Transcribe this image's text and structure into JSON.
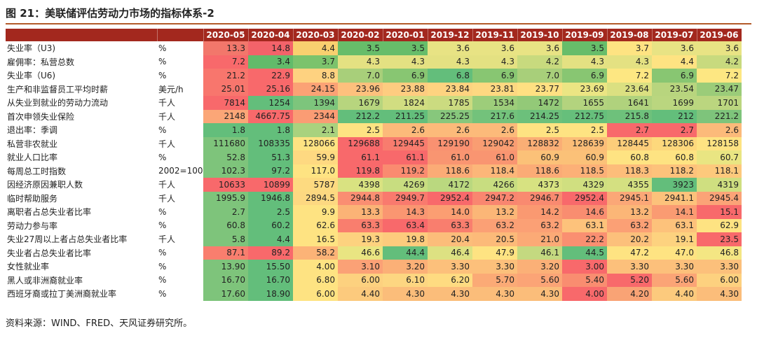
{
  "title": "图 21：美联储评估劳动力市场的指标体系-2",
  "source": "资料来源：WIND、FRED、天风证券研究所。",
  "chart_data": {
    "type": "table",
    "columns": [
      "2020-05",
      "2020-04",
      "2020-03",
      "2020-02",
      "2020-01",
      "2019-12",
      "2019-11",
      "2019-10",
      "2019-09",
      "2019-08",
      "2019-07",
      "2019-06"
    ],
    "rows": [
      {
        "label": "失业率（U3)",
        "unit": "%",
        "values": [
          "13.3",
          "14.8",
          "4.4",
          "3.5",
          "3.5",
          "3.6",
          "3.6",
          "3.6",
          "3.5",
          "3.7",
          "3.6",
          "3.6"
        ],
        "colors": [
          "#f2776b",
          "#f3636a",
          "#f9d06f",
          "#67bd6a",
          "#67bd6a",
          "#e8e384",
          "#e8e384",
          "#e8e384",
          "#67bd6a",
          "#fee382",
          "#e8e384",
          "#e8e384"
        ]
      },
      {
        "label": "雇佣率：私营总数",
        "unit": "%",
        "values": [
          "7.2",
          "3.4",
          "3.7",
          "4.3",
          "4.3",
          "4.3",
          "4.3",
          "4.2",
          "4.3",
          "4.3",
          "4.4",
          "4.2"
        ],
        "colors": [
          "#f8696b",
          "#62bb6a",
          "#7cc36c",
          "#e4e182",
          "#e4e182",
          "#e4e182",
          "#e4e182",
          "#c8da7e",
          "#e4e182",
          "#e4e182",
          "#fee382",
          "#c8da7e"
        ]
      },
      {
        "label": "失业率（U6)",
        "unit": "%",
        "values": [
          "21.2",
          "22.9",
          "8.8",
          "7.0",
          "6.9",
          "6.8",
          "6.9",
          "7.0",
          "6.9",
          "7.2",
          "6.9",
          "7.2"
        ],
        "colors": [
          "#f8766d",
          "#f8696b",
          "#fed280",
          "#a8cf7a",
          "#88c672",
          "#63be7b",
          "#88c672",
          "#a8cf7a",
          "#88c672",
          "#fde782",
          "#88c672",
          "#fde782"
        ]
      },
      {
        "label": "生产和非监督员工平均时薪",
        "unit": "美元/h",
        "values": [
          "25.01",
          "25.16",
          "24.15",
          "23.96",
          "23.88",
          "23.84",
          "23.81",
          "23.77",
          "23.69",
          "23.64",
          "23.54",
          "23.47"
        ],
        "colors": [
          "#f8766d",
          "#f8696b",
          "#fba275",
          "#fdc07d",
          "#fecc80",
          "#fed380",
          "#fed881",
          "#ffe082",
          "#ebe583",
          "#dbe081",
          "#b8d57e",
          "#9bcc79"
        ]
      },
      {
        "label": "从失业到就业的劳动力流动",
        "unit": "千人",
        "values": [
          "7814",
          "1254",
          "1394",
          "1679",
          "1824",
          "1785",
          "1534",
          "1472",
          "1655",
          "1641",
          "1699",
          "1701"
        ],
        "colors": [
          "#f8696b",
          "#63be7b",
          "#7dc57c",
          "#b7d57e",
          "#d1dd81",
          "#cbdb80",
          "#9dcd7a",
          "#93c978",
          "#b3d37e",
          "#b0d27d",
          "#bad67f",
          "#bbd67f"
        ]
      },
      {
        "label": "首次申领失业保险",
        "unit": "千人",
        "values": [
          "2148",
          "4667.75",
          "2344",
          "212.2",
          "211.25",
          "225.25",
          "217.6",
          "214.25",
          "212.75",
          "215.8",
          "212",
          "221.2"
        ],
        "colors": [
          "#fba677",
          "#f8696b",
          "#fa9c74",
          "#63be7b",
          "#63be7b",
          "#87c77c",
          "#73c27b",
          "#6cc07b",
          "#66bf7b",
          "#6ec17b",
          "#63be7b",
          "#7ec47b"
        ]
      },
      {
        "label": "退出率：季调",
        "unit": "%",
        "values": [
          "1.8",
          "1.8",
          "2.1",
          "2.5",
          "2.6",
          "2.6",
          "2.6",
          "2.5",
          "2.5",
          "2.7",
          "2.7",
          "2.6"
        ],
        "colors": [
          "#63be7b",
          "#63be7b",
          "#a9d27e",
          "#fee382",
          "#fcba7a",
          "#fcba7a",
          "#fcba7a",
          "#fee382",
          "#fee382",
          "#f8696b",
          "#f8696b",
          "#fcba7a"
        ]
      },
      {
        "label": "私营非农就业",
        "unit": "千人",
        "values": [
          "111680",
          "108335",
          "128066",
          "129688",
          "129445",
          "129190",
          "129042",
          "128832",
          "128639",
          "128445",
          "128306",
          "128158"
        ],
        "colors": [
          "#7ec47b",
          "#63be7b",
          "#fee382",
          "#f8696b",
          "#f87c6e",
          "#f99171",
          "#f99d72",
          "#faae75",
          "#fbbd77",
          "#fccd7a",
          "#fdd87c",
          "#fee382"
        ]
      },
      {
        "label": "就业人口比率",
        "unit": "%",
        "values": [
          "52.8",
          "51.3",
          "59.9",
          "61.1",
          "61.1",
          "61.0",
          "61.0",
          "60.9",
          "60.9",
          "60.8",
          "60.8",
          "60.7"
        ],
        "colors": [
          "#7ec47b",
          "#63be7b",
          "#fed981",
          "#f8696b",
          "#f8696b",
          "#f99571",
          "#f99571",
          "#fbc178",
          "#fbc178",
          "#fee382",
          "#fee382",
          "#e9e582"
        ]
      },
      {
        "label": "每周总工时指数",
        "unit": "2002=100",
        "values": [
          "102.3",
          "97.2",
          "117.0",
          "119.8",
          "119.2",
          "118.6",
          "118.4",
          "118.6",
          "118.5",
          "118.3",
          "118.2",
          "118.1"
        ],
        "colors": [
          "#7ec47b",
          "#63be7b",
          "#fee382",
          "#f8696b",
          "#fa8b70",
          "#fbab76",
          "#fcb679",
          "#fbab76",
          "#fcb077",
          "#fdbd7a",
          "#fdc27b",
          "#fdc97c"
        ]
      },
      {
        "label": "因经济原因兼职人数",
        "unit": "千人",
        "values": [
          "10633",
          "10899",
          "5787",
          "4398",
          "4269",
          "4172",
          "4266",
          "4373",
          "4329",
          "4355",
          "3923",
          "4319"
        ],
        "colors": [
          "#f8696b",
          "#f8696b",
          "#fdda80",
          "#d9e281",
          "#c8dd80",
          "#bad87f",
          "#c8dd80",
          "#d7e281",
          "#d0df80",
          "#d4e081",
          "#63be7b",
          "#cfdf80"
        ]
      },
      {
        "label": "临时帮助服务",
        "unit": "千人",
        "values": [
          "1995.9",
          "1946.8",
          "2894.5",
          "2944.8",
          "2949.7",
          "2952.4",
          "2947.2",
          "2946.7",
          "2952.4",
          "2945.1",
          "2941.1",
          "2945.4"
        ],
        "colors": [
          "#7ec47b",
          "#63be7b",
          "#fdd881",
          "#fa8e72",
          "#f97a6e",
          "#f8696b",
          "#f98670",
          "#f98a70",
          "#f8696b",
          "#fba777",
          "#fcc27b",
          "#fba377"
        ]
      },
      {
        "label": "离职者占总失业者比率",
        "unit": "%",
        "values": [
          "2.7",
          "2.5",
          "9.9",
          "13.3",
          "14.3",
          "14.0",
          "13.2",
          "14.2",
          "14.6",
          "13.2",
          "14.1",
          "15.1"
        ],
        "colors": [
          "#7ec47b",
          "#63be7b",
          "#fee382",
          "#fbb376",
          "#fa9671",
          "#fb9e72",
          "#fbb677",
          "#fa9971",
          "#f98d70",
          "#fbb677",
          "#fa9b72",
          "#f8696b"
        ]
      },
      {
        "label": "劳动力参与率",
        "unit": "%",
        "values": [
          "60.8",
          "60.2",
          "62.6",
          "63.3",
          "63.4",
          "63.3",
          "63.2",
          "63.2",
          "63.1",
          "63.2",
          "63.1",
          "62.9"
        ],
        "colors": [
          "#7ec47b",
          "#63be7b",
          "#fee382",
          "#f97e6e",
          "#f8696b",
          "#f97e6e",
          "#fba075",
          "#fba075",
          "#fdc27b",
          "#fba075",
          "#fdc27b",
          "#fee382"
        ]
      },
      {
        "label": "失业27周以上者占总失业者比率",
        "unit": "千人",
        "values": [
          "5.8",
          "4.4",
          "16.5",
          "19.3",
          "19.8",
          "20.4",
          "20.5",
          "21.0",
          "22.2",
          "20.2",
          "19.1",
          "23.5"
        ],
        "colors": [
          "#7ec47b",
          "#63be7b",
          "#fee382",
          "#fdd27f",
          "#fdcb7d",
          "#fcbd7a",
          "#fcba79",
          "#fbaa76",
          "#fa8f71",
          "#fcc07b",
          "#fdd27f",
          "#f8696b"
        ]
      },
      {
        "label": "失业者占总失业者比率",
        "unit": "%",
        "values": [
          "87.1",
          "89.2",
          "58.2",
          "46.6",
          "44.4",
          "46.4",
          "47.9",
          "46.1",
          "44.5",
          "47.2",
          "47.0",
          "46.8"
        ],
        "colors": [
          "#f97e6e",
          "#f8696b",
          "#fcb377",
          "#e9e582",
          "#63be7b",
          "#dde182",
          "#fee382",
          "#c4d980",
          "#63be7b",
          "#fee382",
          "#fee382",
          "#f4e683"
        ]
      },
      {
        "label": "女性就业率",
        "unit": "%",
        "values": [
          "13.90",
          "15.50",
          "4.00",
          "3.10",
          "3.20",
          "3.30",
          "3.30",
          "3.20",
          "3.00",
          "3.30",
          "3.30",
          "3.30"
        ],
        "colors": [
          "#7ec47b",
          "#63be7b",
          "#fee382",
          "#fba176",
          "#fbb077",
          "#fcc07b",
          "#fcc07b",
          "#fbb077",
          "#f8696b",
          "#fcc07b",
          "#fcc07b",
          "#fcc07b"
        ]
      },
      {
        "label": "黑人或非洲裔就业率",
        "unit": "%",
        "values": [
          "16.70",
          "16.70",
          "6.80",
          "6.00",
          "6.10",
          "6.20",
          "5.70",
          "5.60",
          "5.40",
          "5.20",
          "5.60",
          "6.00"
        ],
        "colors": [
          "#7ec47b",
          "#63be7b",
          "#fee382",
          "#fdd17f",
          "#fdd681",
          "#fedb81",
          "#fbaa76",
          "#fba476",
          "#f98d70",
          "#f8696b",
          "#fba476",
          "#fdd17f"
        ]
      },
      {
        "label": "西班牙裔或拉丁美洲裔就业率",
        "unit": "%",
        "values": [
          "17.60",
          "18.90",
          "6.00",
          "4.40",
          "4.30",
          "4.30",
          "4.30",
          "4.30",
          "4.00",
          "4.20",
          "4.40",
          "4.30"
        ],
        "colors": [
          "#7ec47b",
          "#63be7b",
          "#fee382",
          "#fcca7d",
          "#fbbd7a",
          "#fbbd7a",
          "#fbbd7a",
          "#fbbd7a",
          "#f8696b",
          "#f9a375",
          "#fcca7d",
          "#fbbd7a"
        ]
      }
    ]
  }
}
